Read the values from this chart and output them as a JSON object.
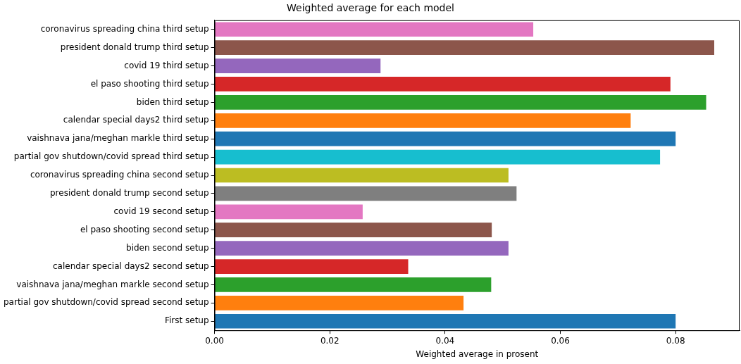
{
  "chart_data": {
    "type": "bar",
    "orientation": "horizontal",
    "title": "Weighted average for each model",
    "xlabel": "Weighted average in prosent",
    "categories": [
      "coronavirus spreading china third setup",
      "president donald trump third setup",
      "covid 19 third setup",
      "el paso shooting third setup",
      "biden third setup",
      "calendar special days2 third setup",
      "vaishnava jana/meghan markle third setup",
      "partial gov shutdown/covid spread third setup",
      "coronavirus spreading china second setup",
      "president donald trump second setup",
      "covid 19 second setup",
      "el paso shooting second setup",
      "biden second setup",
      "calendar special days2 second setup",
      "vaishnava jana/meghan markle second setup",
      "partial gov shutdown/covid spread second setup",
      "First setup"
    ],
    "values": [
      0.0553,
      0.0867,
      0.0288,
      0.0791,
      0.0853,
      0.0722,
      0.08,
      0.0773,
      0.051,
      0.0524,
      0.0257,
      0.0481,
      0.051,
      0.0336,
      0.048,
      0.0432,
      0.08
    ],
    "colors": [
      "#e377c2",
      "#8c564b",
      "#9467bd",
      "#d62728",
      "#2ca02c",
      "#ff7f0e",
      "#1f77b4",
      "#17becf",
      "#bcbd22",
      "#7f7f7f",
      "#e377c2",
      "#8c564b",
      "#9467bd",
      "#d62728",
      "#2ca02c",
      "#ff7f0e",
      "#1f77b4"
    ],
    "xlim": [
      0,
      0.0911
    ],
    "xticks": [
      {
        "value": 0,
        "label": "0.00"
      },
      {
        "value": 0.02,
        "label": "0.02"
      },
      {
        "value": 0.04,
        "label": "0.04"
      },
      {
        "value": 0.06,
        "label": "0.06"
      },
      {
        "value": 0.08,
        "label": "0.08"
      }
    ],
    "grid": false,
    "legend": false
  }
}
